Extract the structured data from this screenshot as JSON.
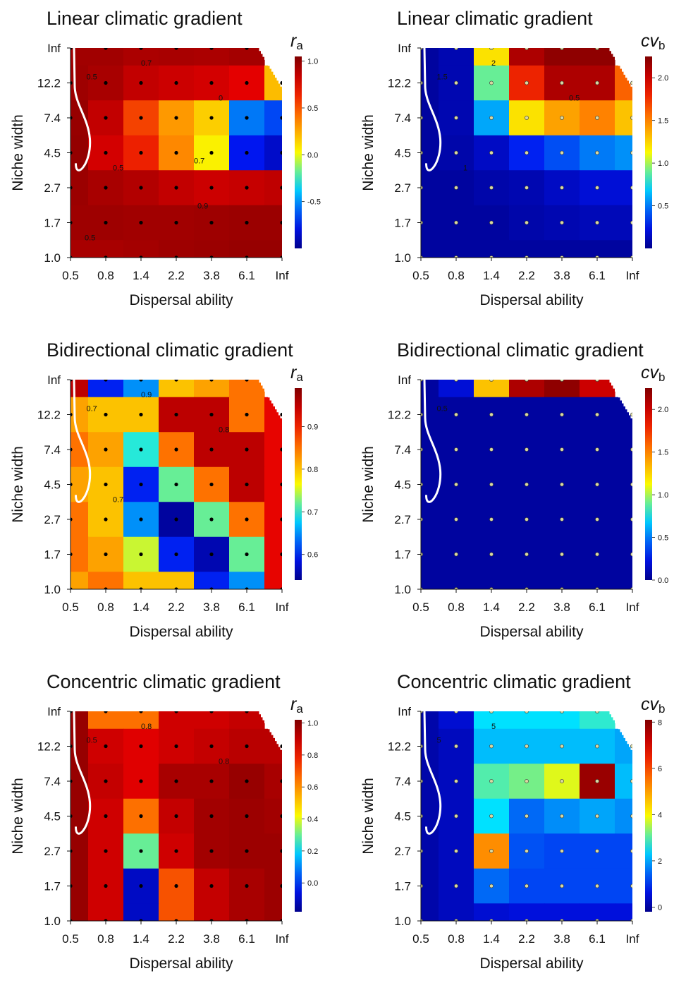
{
  "chart_data": [
    {
      "type": "heatmap",
      "title": "Linear climatic gradient",
      "xlabel": "Dispersal ability",
      "ylabel": "Niche width",
      "x_ticks": [
        "0.5",
        "0.8",
        "1.4",
        "2.2",
        "3.8",
        "6.1",
        "Inf"
      ],
      "y_ticks": [
        "Inf",
        "12.2",
        "7.4",
        "4.5",
        "2.7",
        "1.7",
        "1.0"
      ],
      "legend_symbol": "r",
      "legend_subscript": "a",
      "colorbar_ticks": [
        "1.0",
        "0.5",
        "0.0",
        "-0.5"
      ],
      "colorbar_values": [
        1.0,
        0.5,
        0.0,
        -0.5
      ],
      "colorbar_range": [
        -1.0,
        1.05
      ],
      "contour_labels": [
        "0.5",
        "0.7",
        "0",
        "0.5",
        "0.7",
        "0.9",
        "0.5"
      ],
      "values": [
        [
          0.95,
          0.95,
          0.92,
          0.93,
          0.92,
          0.94,
          null
        ],
        [
          0.96,
          0.93,
          0.85,
          0.82,
          0.8,
          0.75,
          0.2
        ],
        [
          0.98,
          0.85,
          0.55,
          0.3,
          0.15,
          -0.55,
          -0.65
        ],
        [
          0.99,
          0.8,
          0.65,
          0.35,
          0.05,
          -0.75,
          -0.85
        ],
        [
          0.97,
          0.93,
          0.9,
          0.85,
          0.82,
          0.84,
          0.86
        ],
        [
          0.96,
          0.96,
          0.95,
          0.95,
          0.96,
          0.97,
          0.97
        ],
        [
          0.93,
          0.93,
          0.94,
          0.96,
          0.97,
          0.98,
          0.98
        ]
      ]
    },
    {
      "type": "heatmap",
      "title": "Linear climatic gradient",
      "xlabel": "Dispersal ability",
      "ylabel": "Niche width",
      "x_ticks": [
        "0.5",
        "0.8",
        "1.4",
        "2.2",
        "3.8",
        "6.1",
        "Inf"
      ],
      "y_ticks": [
        "Inf",
        "12.2",
        "7.4",
        "4.5",
        "2.7",
        "1.7",
        "1.0"
      ],
      "legend_symbol": "cv",
      "legend_subscript": "b",
      "colorbar_ticks": [
        "2.0",
        "1.5",
        "1.0",
        "0.5"
      ],
      "colorbar_values": [
        2.0,
        1.5,
        1.0,
        0.5
      ],
      "colorbar_range": [
        0.0,
        2.25
      ],
      "contour_labels": [
        "1.5",
        "2",
        "0.5",
        "1"
      ],
      "values": [
        [
          0.05,
          0.1,
          1.2,
          2.1,
          2.2,
          2.2,
          null
        ],
        [
          0.05,
          0.1,
          0.9,
          1.8,
          2.1,
          2.1,
          1.6
        ],
        [
          0.05,
          0.1,
          0.6,
          1.2,
          1.4,
          1.5,
          1.3
        ],
        [
          0.05,
          0.08,
          0.15,
          0.3,
          0.4,
          0.5,
          0.55
        ],
        [
          0.05,
          0.05,
          0.08,
          0.1,
          0.15,
          0.2,
          0.2
        ],
        [
          0.05,
          0.05,
          0.05,
          0.08,
          0.1,
          0.12,
          0.12
        ],
        [
          0.05,
          0.05,
          0.05,
          0.05,
          0.05,
          0.05,
          0.05
        ]
      ]
    },
    {
      "type": "heatmap",
      "title": "Bidirectional climatic gradient",
      "xlabel": "Dispersal ability",
      "ylabel": "Niche width",
      "x_ticks": [
        "0.5",
        "0.8",
        "1.4",
        "2.2",
        "3.8",
        "6.1",
        "Inf"
      ],
      "y_ticks": [
        "Inf",
        "12.2",
        "7.4",
        "4.5",
        "2.7",
        "1.7",
        "1.0"
      ],
      "legend_symbol": "r",
      "legend_subscript": "a",
      "colorbar_ticks": [
        "0.9",
        "0.8",
        "0.7",
        "0.6"
      ],
      "colorbar_values": [
        0.9,
        0.8,
        0.7,
        0.6
      ],
      "colorbar_range": [
        0.54,
        0.99
      ],
      "contour_labels": [
        "0.7",
        "0.9",
        "0.8",
        "0.7"
      ],
      "values": [
        [
          0.95,
          0.6,
          0.65,
          0.8,
          0.82,
          0.85,
          null
        ],
        [
          0.82,
          0.8,
          0.8,
          0.95,
          0.95,
          0.85,
          0.92
        ],
        [
          0.85,
          0.82,
          0.7,
          0.85,
          0.95,
          0.95,
          0.92
        ],
        [
          0.82,
          0.8,
          0.6,
          0.72,
          0.85,
          0.95,
          0.92
        ],
        [
          0.85,
          0.8,
          0.65,
          0.55,
          0.72,
          0.85,
          0.92
        ],
        [
          0.85,
          0.82,
          0.75,
          0.6,
          0.56,
          0.72,
          0.92
        ],
        [
          0.82,
          0.85,
          0.8,
          0.8,
          0.6,
          0.65,
          0.92
        ]
      ]
    },
    {
      "type": "heatmap",
      "title": "Bidirectional climatic gradient",
      "xlabel": "Dispersal ability",
      "ylabel": "Niche width",
      "x_ticks": [
        "0.5",
        "0.8",
        "1.4",
        "2.2",
        "3.8",
        "6.1",
        "Inf"
      ],
      "y_ticks": [
        "Inf",
        "12.2",
        "7.4",
        "4.5",
        "2.7",
        "1.7",
        "1.0"
      ],
      "legend_symbol": "cv",
      "legend_subscript": "b",
      "colorbar_ticks": [
        "2.0",
        "1.5",
        "1.0",
        "0.5",
        "0.0"
      ],
      "colorbar_values": [
        2.0,
        1.5,
        1.0,
        0.5,
        0.0
      ],
      "colorbar_range": [
        0.0,
        2.25
      ],
      "contour_labels": [
        "0.5"
      ],
      "values": [
        [
          0.05,
          0.2,
          1.3,
          2.1,
          2.2,
          2.0,
          null
        ],
        [
          0.05,
          0.05,
          0.05,
          0.05,
          0.05,
          0.05,
          0.05
        ],
        [
          0.05,
          0.05,
          0.05,
          0.05,
          0.05,
          0.05,
          0.05
        ],
        [
          0.05,
          0.05,
          0.05,
          0.05,
          0.05,
          0.05,
          0.05
        ],
        [
          0.05,
          0.05,
          0.05,
          0.05,
          0.05,
          0.05,
          0.05
        ],
        [
          0.05,
          0.05,
          0.05,
          0.05,
          0.05,
          0.05,
          0.05
        ],
        [
          0.05,
          0.05,
          0.05,
          0.05,
          0.05,
          0.05,
          0.05
        ]
      ]
    },
    {
      "type": "heatmap",
      "title": "Concentric climatic gradient",
      "xlabel": "Dispersal ability",
      "ylabel": "Niche width",
      "x_ticks": [
        "0.5",
        "0.8",
        "1.4",
        "2.2",
        "3.8",
        "6.1",
        "Inf"
      ],
      "y_ticks": [
        "Inf",
        "12.2",
        "7.4",
        "4.5",
        "2.7",
        "1.7",
        "1.0"
      ],
      "legend_symbol": "r",
      "legend_subscript": "a",
      "colorbar_ticks": [
        "1.0",
        "0.8",
        "0.6",
        "0.4",
        "0.2",
        "0.0"
      ],
      "colorbar_values": [
        1.0,
        0.8,
        0.6,
        0.4,
        0.2,
        0.0
      ],
      "colorbar_range": [
        -0.18,
        1.02
      ],
      "contour_labels": [
        "0.5",
        "0.8",
        "0.8"
      ],
      "values": [
        [
          0.98,
          0.65,
          0.65,
          0.88,
          0.88,
          0.9,
          null
        ],
        [
          0.98,
          0.88,
          0.85,
          0.88,
          0.9,
          0.92,
          0.92
        ],
        [
          0.98,
          0.9,
          0.85,
          0.95,
          0.95,
          0.98,
          0.95
        ],
        [
          0.98,
          0.88,
          0.65,
          0.9,
          0.96,
          0.97,
          0.96
        ],
        [
          0.98,
          0.88,
          0.3,
          0.88,
          0.96,
          0.97,
          0.97
        ],
        [
          0.98,
          0.88,
          -0.1,
          0.7,
          0.9,
          0.95,
          0.97
        ],
        [
          0.98,
          0.88,
          -0.1,
          0.7,
          0.9,
          0.95,
          0.97
        ]
      ]
    },
    {
      "type": "heatmap",
      "title": "Concentric climatic gradient",
      "xlabel": "Dispersal ability",
      "ylabel": "Niche width",
      "x_ticks": [
        "0.5",
        "0.8",
        "1.4",
        "2.2",
        "3.8",
        "6.1",
        "Inf"
      ],
      "y_ticks": [
        "Inf",
        "12.2",
        "7.4",
        "4.5",
        "2.7",
        "1.7",
        "1.0"
      ],
      "legend_symbol": "cv",
      "legend_subscript": "b",
      "colorbar_ticks": [
        "8",
        "6",
        "4",
        "2",
        "0"
      ],
      "colorbar_values": [
        8,
        6,
        4,
        2,
        0
      ],
      "colorbar_range": [
        -0.2,
        8.1
      ],
      "contour_labels": [
        "5",
        "5"
      ],
      "values": [
        [
          0.1,
          0.5,
          2.5,
          2.5,
          2.5,
          2.8,
          null
        ],
        [
          0.1,
          0.3,
          2.2,
          2.2,
          2.2,
          2.2,
          2.0
        ],
        [
          0.1,
          0.3,
          3.0,
          3.2,
          3.8,
          7.8,
          2.2
        ],
        [
          0.1,
          0.3,
          2.5,
          1.5,
          1.8,
          2.0,
          1.8
        ],
        [
          0.1,
          0.3,
          5.2,
          1.3,
          1.2,
          1.2,
          1.2
        ],
        [
          0.1,
          0.3,
          1.5,
          1.2,
          1.2,
          1.2,
          1.2
        ],
        [
          0.1,
          0.3,
          0.5,
          0.6,
          0.6,
          0.6,
          0.6
        ]
      ]
    }
  ]
}
